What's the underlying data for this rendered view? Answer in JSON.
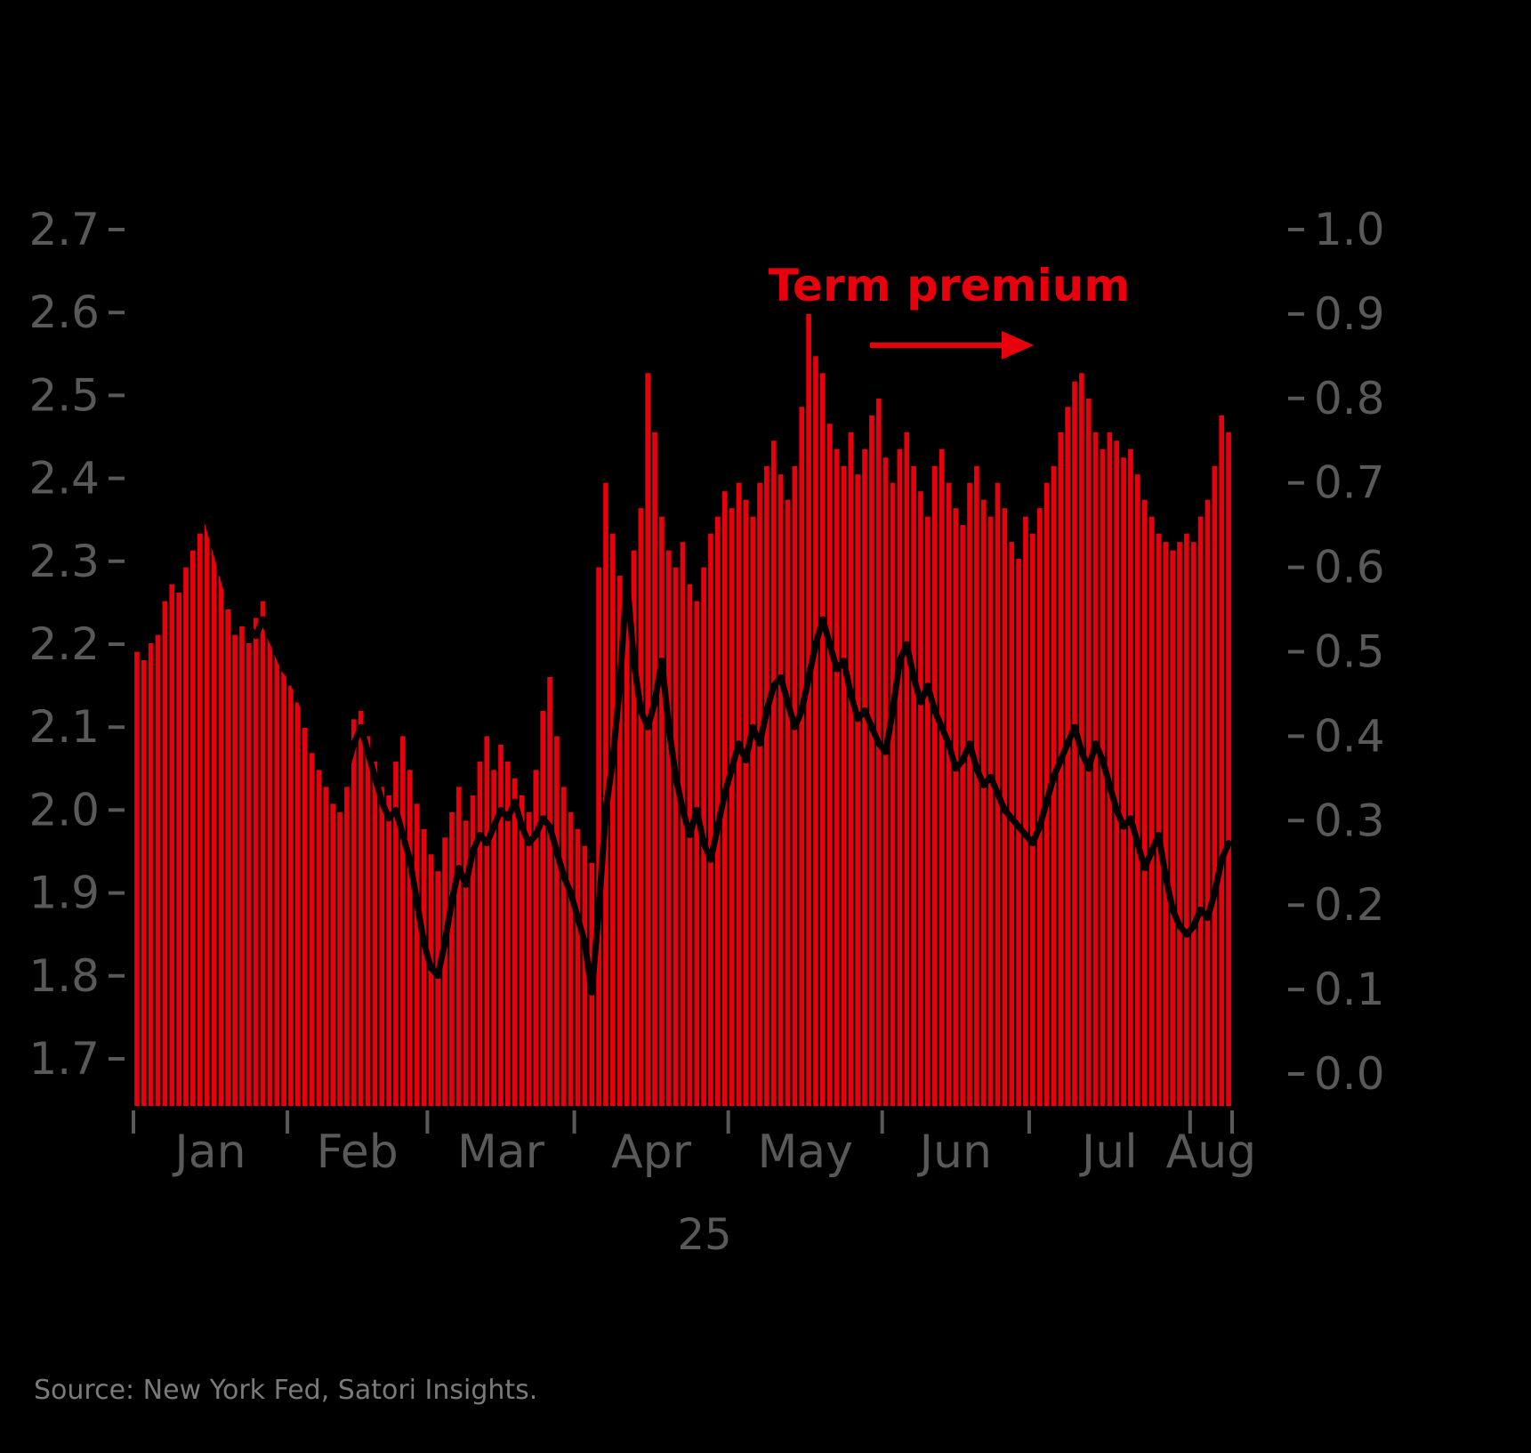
{
  "source_note": "Source: New York Fed, Satori Insights.",
  "chart_data": {
    "type": "bar",
    "title": "",
    "background_color": "#000000",
    "annotation": {
      "text": "Term premium",
      "color": "#e8000d",
      "arrow": "right"
    },
    "x_axis": {
      "year_label": "25",
      "months": [
        "Jan",
        "Feb",
        "Mar",
        "Apr",
        "May",
        "Jun",
        "Jul",
        "Aug"
      ],
      "month_day_counts": [
        22,
        20,
        21,
        22,
        22,
        21,
        23,
        6
      ]
    },
    "left_axis": {
      "min": 1.7,
      "max": 2.7,
      "ticks": [
        "2.7",
        "2.6",
        "2.5",
        "2.4",
        "2.3",
        "2.2",
        "2.1",
        "2.0",
        "1.9",
        "1.8",
        "1.7"
      ],
      "color": "#595959"
    },
    "right_axis": {
      "min": 0.0,
      "max": 1.0,
      "ticks": [
        "1.0",
        "0.9",
        "0.8",
        "0.7",
        "0.6",
        "0.5",
        "0.4",
        "0.3",
        "0.2",
        "0.1",
        "0.0"
      ],
      "color": "#595959"
    },
    "series": [
      {
        "name": "Term premium",
        "type": "bar",
        "axis": "right",
        "color": "#e8000d",
        "values": [
          0.5,
          0.49,
          0.51,
          0.52,
          0.56,
          0.58,
          0.57,
          0.6,
          0.62,
          0.64,
          0.66,
          0.63,
          0.59,
          0.55,
          0.52,
          0.53,
          0.51,
          0.54,
          0.56,
          0.52,
          0.5,
          0.48,
          0.46,
          0.44,
          0.41,
          0.38,
          0.36,
          0.34,
          0.32,
          0.31,
          0.34,
          0.42,
          0.43,
          0.4,
          0.37,
          0.34,
          0.33,
          0.37,
          0.4,
          0.36,
          0.32,
          0.29,
          0.26,
          0.24,
          0.28,
          0.31,
          0.34,
          0.3,
          0.33,
          0.37,
          0.4,
          0.36,
          0.39,
          0.37,
          0.35,
          0.33,
          0.31,
          0.36,
          0.43,
          0.47,
          0.4,
          0.34,
          0.31,
          0.29,
          0.27,
          0.25,
          0.6,
          0.7,
          0.64,
          0.59,
          0.55,
          0.62,
          0.67,
          0.83,
          0.76,
          0.66,
          0.62,
          0.6,
          0.63,
          0.58,
          0.56,
          0.6,
          0.64,
          0.66,
          0.69,
          0.67,
          0.7,
          0.68,
          0.66,
          0.7,
          0.72,
          0.75,
          0.71,
          0.68,
          0.72,
          0.79,
          0.9,
          0.85,
          0.83,
          0.77,
          0.74,
          0.72,
          0.76,
          0.71,
          0.74,
          0.78,
          0.8,
          0.73,
          0.7,
          0.74,
          0.76,
          0.72,
          0.69,
          0.66,
          0.72,
          0.74,
          0.7,
          0.67,
          0.65,
          0.7,
          0.72,
          0.68,
          0.66,
          0.7,
          0.67,
          0.63,
          0.61,
          0.66,
          0.64,
          0.67,
          0.7,
          0.72,
          0.76,
          0.79,
          0.82,
          0.83,
          0.8,
          0.76,
          0.74,
          0.76,
          0.75,
          0.73,
          0.74,
          0.71,
          0.68,
          0.66,
          0.64,
          0.63,
          0.62,
          0.63,
          0.64,
          0.63,
          0.66,
          0.68,
          0.72,
          0.78,
          0.76
        ]
      },
      {
        "name": "unlabeled-line",
        "type": "line",
        "axis": "left",
        "color": "#000000",
        "values": [
          2.3,
          2.29,
          2.31,
          2.3,
          2.32,
          2.34,
          2.33,
          2.35,
          2.36,
          2.37,
          2.35,
          2.32,
          2.29,
          2.26,
          2.24,
          2.25,
          2.22,
          2.21,
          2.23,
          2.21,
          2.19,
          2.17,
          2.16,
          2.14,
          2.12,
          2.13,
          2.1,
          2.08,
          2.06,
          2.07,
          2.05,
          2.08,
          2.1,
          2.07,
          2.04,
          2.01,
          1.99,
          2.0,
          1.97,
          1.94,
          1.89,
          1.84,
          1.81,
          1.8,
          1.84,
          1.89,
          1.93,
          1.91,
          1.95,
          1.97,
          1.96,
          1.98,
          2.0,
          1.99,
          2.01,
          1.98,
          1.96,
          1.97,
          1.99,
          1.98,
          1.95,
          1.92,
          1.9,
          1.87,
          1.84,
          1.78,
          1.88,
          2.0,
          2.06,
          2.15,
          2.28,
          2.18,
          2.12,
          2.1,
          2.13,
          2.18,
          2.1,
          2.04,
          2.0,
          1.97,
          2.0,
          1.96,
          1.94,
          1.98,
          2.02,
          2.05,
          2.08,
          2.06,
          2.1,
          2.08,
          2.12,
          2.15,
          2.16,
          2.13,
          2.1,
          2.12,
          2.16,
          2.2,
          2.23,
          2.2,
          2.17,
          2.18,
          2.14,
          2.11,
          2.12,
          2.1,
          2.08,
          2.07,
          2.12,
          2.18,
          2.2,
          2.16,
          2.13,
          2.15,
          2.12,
          2.1,
          2.08,
          2.05,
          2.06,
          2.08,
          2.05,
          2.03,
          2.04,
          2.02,
          2.0,
          1.99,
          1.98,
          1.97,
          1.96,
          1.98,
          2.01,
          2.04,
          2.06,
          2.08,
          2.1,
          2.07,
          2.05,
          2.08,
          2.06,
          2.03,
          2.0,
          1.98,
          1.99,
          1.96,
          1.93,
          1.95,
          1.97,
          1.92,
          1.88,
          1.86,
          1.85,
          1.86,
          1.88,
          1.87,
          1.9,
          1.94,
          1.96
        ]
      }
    ]
  }
}
